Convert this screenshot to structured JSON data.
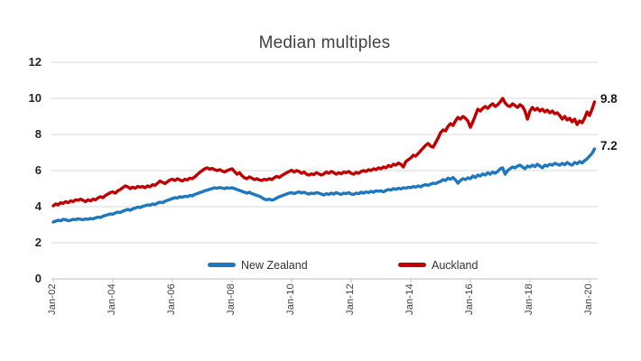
{
  "title": "Median multiples",
  "colors": {
    "new_zealand": "#1F78BE",
    "auckland": "#C00000",
    "gridline": "#D9D9D9",
    "axis_line": "#BFBFBF"
  },
  "legend": {
    "items": [
      {
        "label": "New Zealand",
        "color": "#1F78BE"
      },
      {
        "label": "Auckland",
        "color": "#C00000"
      }
    ]
  },
  "chart_data": {
    "type": "line",
    "title": "Median multiples",
    "x_axis": {
      "interval": "monthly",
      "start": "Jan-02",
      "end": "Mar-20",
      "tick_labels": [
        "Jan-02",
        "Jan-04",
        "Jan-06",
        "Jan-08",
        "Jan-10",
        "Jan-12",
        "Jan-14",
        "Jan-16",
        "Jan-18",
        "Jan-20"
      ],
      "tick_month_offsets": [
        0,
        24,
        48,
        72,
        96,
        120,
        144,
        168,
        192,
        216
      ]
    },
    "y_axis": {
      "range": [
        0,
        12
      ],
      "tick_values": [
        0,
        2,
        4,
        6,
        8,
        10,
        12
      ],
      "tick_labels": [
        "0",
        "2",
        "4",
        "6",
        "8",
        "10",
        "12"
      ],
      "grid": true
    },
    "legend_position": "bottom-inside",
    "series": [
      {
        "name": "New Zealand",
        "color": "#1F78BE",
        "end_label": "7.2",
        "values": [
          3.15,
          3.2,
          3.25,
          3.22,
          3.3,
          3.28,
          3.22,
          3.25,
          3.3,
          3.28,
          3.33,
          3.3,
          3.28,
          3.32,
          3.3,
          3.35,
          3.32,
          3.38,
          3.42,
          3.4,
          3.47,
          3.52,
          3.55,
          3.6,
          3.58,
          3.65,
          3.7,
          3.68,
          3.75,
          3.8,
          3.85,
          3.8,
          3.88,
          3.92,
          3.98,
          3.95,
          4.02,
          4.05,
          4.1,
          4.08,
          4.15,
          4.12,
          4.2,
          4.25,
          4.22,
          4.3,
          4.35,
          4.4,
          4.45,
          4.5,
          4.48,
          4.55,
          4.52,
          4.58,
          4.55,
          4.62,
          4.6,
          4.68,
          4.72,
          4.78,
          4.82,
          4.88,
          4.92,
          4.96,
          5.0,
          5.05,
          5.02,
          5.06,
          5.03,
          5.0,
          5.05,
          5.02,
          5.05,
          5.0,
          4.95,
          4.9,
          4.85,
          4.8,
          4.75,
          4.8,
          4.72,
          4.68,
          4.62,
          4.58,
          4.5,
          4.42,
          4.38,
          4.42,
          4.36,
          4.4,
          4.48,
          4.55,
          4.6,
          4.65,
          4.7,
          4.75,
          4.78,
          4.72,
          4.78,
          4.82,
          4.76,
          4.8,
          4.74,
          4.7,
          4.75,
          4.72,
          4.78,
          4.75,
          4.7,
          4.65,
          4.72,
          4.68,
          4.75,
          4.7,
          4.78,
          4.72,
          4.68,
          4.75,
          4.72,
          4.78,
          4.7,
          4.68,
          4.75,
          4.72,
          4.8,
          4.75,
          4.82,
          4.78,
          4.85,
          4.8,
          4.88,
          4.85,
          4.88,
          4.82,
          4.9,
          4.95,
          4.92,
          5.0,
          4.96,
          5.02,
          4.98,
          5.05,
          5.02,
          5.08,
          5.05,
          5.12,
          5.08,
          5.15,
          5.1,
          5.18,
          5.22,
          5.18,
          5.25,
          5.3,
          5.28,
          5.35,
          5.4,
          5.5,
          5.45,
          5.58,
          5.52,
          5.62,
          5.48,
          5.3,
          5.45,
          5.55,
          5.5,
          5.6,
          5.55,
          5.7,
          5.62,
          5.75,
          5.7,
          5.82,
          5.75,
          5.88,
          5.8,
          5.92,
          5.85,
          5.95,
          6.1,
          6.15,
          5.8,
          6.0,
          6.1,
          6.2,
          6.15,
          6.25,
          6.3,
          6.2,
          6.1,
          6.25,
          6.2,
          6.3,
          6.22,
          6.35,
          6.25,
          6.15,
          6.3,
          6.25,
          6.35,
          6.3,
          6.4,
          6.35,
          6.3,
          6.4,
          6.32,
          6.45,
          6.35,
          6.3,
          6.45,
          6.38,
          6.5,
          6.42,
          6.55,
          6.65,
          6.8,
          6.95,
          7.2
        ]
      },
      {
        "name": "Auckland",
        "color": "#C00000",
        "end_label": "9.8",
        "values": [
          4.05,
          4.15,
          4.1,
          4.22,
          4.18,
          4.28,
          4.22,
          4.32,
          4.28,
          4.38,
          4.35,
          4.42,
          4.35,
          4.28,
          4.38,
          4.32,
          4.42,
          4.38,
          4.48,
          4.55,
          4.5,
          4.62,
          4.7,
          4.78,
          4.82,
          4.75,
          4.88,
          4.95,
          5.05,
          5.15,
          5.1,
          5.0,
          5.08,
          5.02,
          5.12,
          5.08,
          5.12,
          5.05,
          5.15,
          5.1,
          5.22,
          5.18,
          5.3,
          5.42,
          5.35,
          5.28,
          5.38,
          5.48,
          5.52,
          5.45,
          5.55,
          5.48,
          5.42,
          5.52,
          5.48,
          5.58,
          5.55,
          5.65,
          5.78,
          5.9,
          6.0,
          6.1,
          6.15,
          6.08,
          6.12,
          6.05,
          6.0,
          6.05,
          5.98,
          5.92,
          6.0,
          6.05,
          6.1,
          5.95,
          5.8,
          5.88,
          5.72,
          5.6,
          5.55,
          5.65,
          5.58,
          5.5,
          5.55,
          5.48,
          5.45,
          5.52,
          5.48,
          5.55,
          5.5,
          5.6,
          5.68,
          5.62,
          5.72,
          5.8,
          5.88,
          5.95,
          6.02,
          5.92,
          6.0,
          5.95,
          5.85,
          5.92,
          5.8,
          5.75,
          5.82,
          5.78,
          5.88,
          5.82,
          5.75,
          5.82,
          5.92,
          5.85,
          5.95,
          5.88,
          5.8,
          5.88,
          5.82,
          5.92,
          5.88,
          5.95,
          5.85,
          5.8,
          5.9,
          5.85,
          5.95,
          6.0,
          5.95,
          6.05,
          6.0,
          6.1,
          6.05,
          6.15,
          6.1,
          6.2,
          6.15,
          6.28,
          6.22,
          6.35,
          6.3,
          6.42,
          6.35,
          6.2,
          6.5,
          6.6,
          6.7,
          6.85,
          6.8,
          6.95,
          7.1,
          7.25,
          7.4,
          7.5,
          7.35,
          7.3,
          7.55,
          7.8,
          8.1,
          8.25,
          8.2,
          8.45,
          8.6,
          8.5,
          8.75,
          8.95,
          8.85,
          9.0,
          8.9,
          8.75,
          8.4,
          8.7,
          9.05,
          9.4,
          9.3,
          9.45,
          9.55,
          9.45,
          9.6,
          9.7,
          9.55,
          9.65,
          9.8,
          10.0,
          9.75,
          9.6,
          9.55,
          9.7,
          9.6,
          9.5,
          9.65,
          9.55,
          9.3,
          8.85,
          9.3,
          9.5,
          9.35,
          9.45,
          9.3,
          9.4,
          9.25,
          9.35,
          9.2,
          9.3,
          9.15,
          9.2,
          9.05,
          8.85,
          9.0,
          8.8,
          8.9,
          8.7,
          8.85,
          8.55,
          8.75,
          8.65,
          8.9,
          9.25,
          9.05,
          9.4,
          9.8
        ]
      }
    ]
  }
}
